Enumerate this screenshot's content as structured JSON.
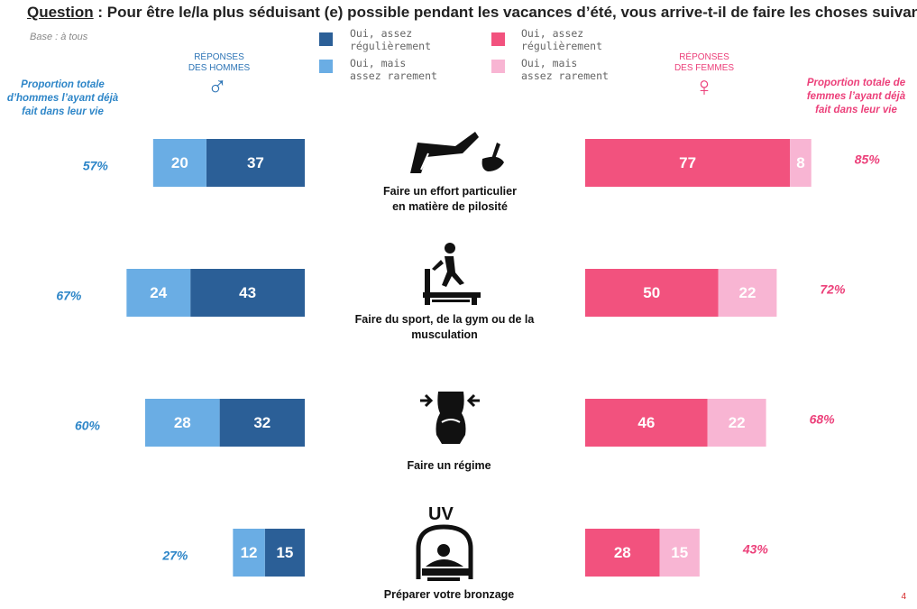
{
  "header": {
    "question_label": "Question",
    "question_text": " : Pour être le/la plus séduisant (e) possible pendant les vacances d’été, vous arrive-t-il de faire les choses suivantes ?",
    "base": "Base : à tous"
  },
  "legend": {
    "men_regular": "Oui, assez\nrégulièrement",
    "men_rare": "Oui, mais\nassez rarement",
    "women_regular": "Oui, assez\nrégulièrement",
    "women_rare": "Oui, mais\nassez rarement"
  },
  "columns": {
    "men_header": "RÉPONSES\nDES HOMMES",
    "women_header": "RÉPONSES\nDES FEMMES",
    "men_symbol": "♂",
    "women_symbol": "♀",
    "men_total_header": "Proportion totale\nd’hommes l’ayant déjà\nfait dans leur vie",
    "women_total_header": "Proportion totale de\nfemmes l’ayant déjà\nfait dans leur vie"
  },
  "colors": {
    "men_regular": "#2b5f97",
    "men_rare": "#6aade4",
    "women_regular": "#f2527e",
    "women_rare": "#f8b5d3",
    "men_text": "#2e86c8",
    "women_text": "#ec407a"
  },
  "chart_data": {
    "type": "bar",
    "orientation": "horizontal-butterfly",
    "categories": [
      "Faire un effort particulier\nen matière de pilosité",
      "Faire du sport, de la gym ou de la\nmusculation",
      "Faire un régime",
      "Préparer votre bronzage"
    ],
    "icons": [
      "waxing-icon",
      "treadmill-icon",
      "diet-icon",
      "uv-tanning-icon"
    ],
    "men": {
      "rare": [
        20,
        24,
        28,
        12
      ],
      "regular": [
        37,
        43,
        32,
        15
      ],
      "total_labels": [
        "57%",
        "67%",
        "60%",
        "27%"
      ]
    },
    "women": {
      "regular": [
        77,
        50,
        46,
        28
      ],
      "rare": [
        8,
        22,
        22,
        15
      ],
      "total_labels": [
        "85%",
        "72%",
        "68%",
        "43%"
      ]
    }
  },
  "page_number": "4"
}
